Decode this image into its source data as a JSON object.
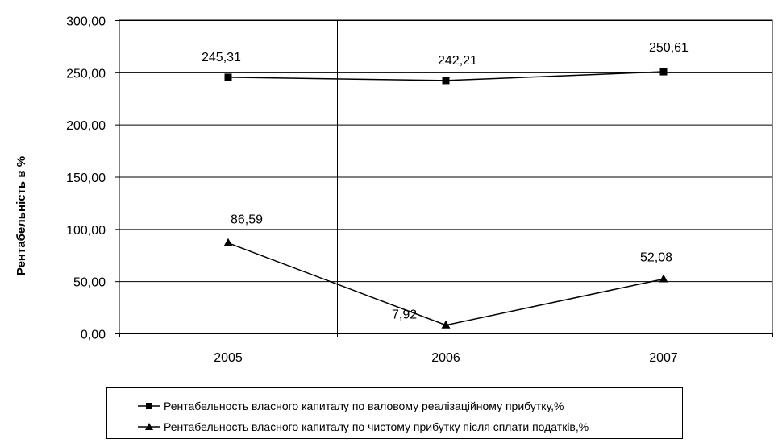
{
  "chart_data": {
    "type": "line",
    "title": "",
    "xlabel": "",
    "ylabel": "Рентабельність в %",
    "categories": [
      "2005",
      "2006",
      "2007"
    ],
    "ylim": [
      0,
      300
    ],
    "yticks": [
      "0,00",
      "50,00",
      "100,00",
      "150,00",
      "200,00",
      "250,00",
      "300,00"
    ],
    "ytick_values": [
      0,
      50,
      100,
      150,
      200,
      250,
      300
    ],
    "grid": true,
    "legend_position": "bottom",
    "series": [
      {
        "name": "Рентабельность власного капиталу  по валовому реалізаційному прибутку,%",
        "marker": "square",
        "values": [
          245.31,
          242.21,
          250.61
        ],
        "labels": [
          "245,31",
          "242,21",
          "250,61"
        ]
      },
      {
        "name": "Рентабельность власного капиталу  по чистому прибутку після сплати податків,%",
        "marker": "triangle",
        "values": [
          86.59,
          7.92,
          52.08
        ],
        "labels": [
          "86,59",
          "7,92",
          "52,08"
        ]
      }
    ]
  }
}
